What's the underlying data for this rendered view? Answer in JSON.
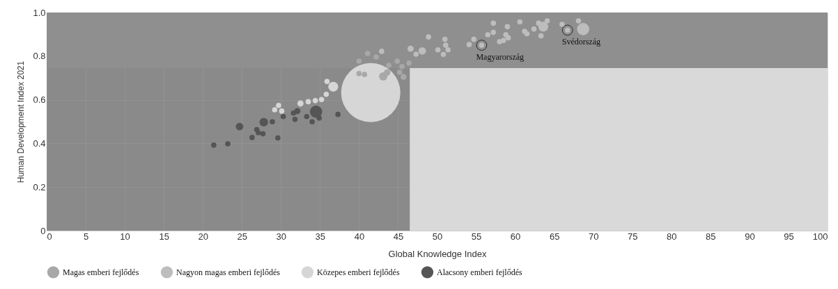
{
  "chart_data": {
    "type": "bubble",
    "xlabel": "Global Knowledge Index",
    "ylabel": "Human Development Index 2021",
    "xlim": [
      0,
      100
    ],
    "ylim": [
      0,
      1
    ],
    "xticks": [
      0,
      5,
      10,
      15,
      20,
      25,
      30,
      35,
      40,
      45,
      50,
      55,
      60,
      65,
      70,
      75,
      80,
      85,
      90,
      95,
      100
    ],
    "yticks": [
      0,
      0.2,
      0.4,
      0.6,
      0.8,
      {
        "value": 1,
        "label": "1.0"
      }
    ],
    "grid": true,
    "legend": "bottom",
    "marker": "circle",
    "bands": [
      {
        "axis": "x",
        "from": 46.5,
        "to": 100,
        "color": "#d9d9d9"
      },
      {
        "axis": "y",
        "from": 0.745,
        "to": 1,
        "color": "#8f8f8f"
      }
    ],
    "annotations": [
      {
        "text": "Magyarország",
        "x": 55.7,
        "y": 0.85
      },
      {
        "text": "Svédország",
        "x": 66.7,
        "y": 0.919
      }
    ],
    "series": [
      {
        "name": "Magas emberi fejlődés",
        "color": "#a8a8a8",
        "x": [
          40.0,
          40.7,
          43.1,
          43.6,
          45.7,
          45.2,
          40.0,
          41.1,
          42.2,
          43.8,
          44.9,
          45.5,
          46.4
        ],
        "values": [
          0.72,
          0.716,
          0.707,
          0.725,
          0.705,
          0.726,
          0.777,
          0.812,
          0.796,
          0.758,
          0.777,
          0.752,
          0.768
        ],
        "sizes": [
          0.008,
          0.008,
          0.02,
          0.012,
          0.01,
          0.008,
          0.008,
          0.008,
          0.008,
          0.008,
          0.008,
          0.008,
          0.008
        ]
      },
      {
        "name": "Nagyon magas emberi fejlődés",
        "color": "#bdbdbd",
        "x": [
          42.9,
          46.6,
          47.3,
          48.1,
          48.9,
          50.1,
          50.8,
          51.0,
          51.1,
          51.4,
          54.1,
          54.7,
          55.7,
          56.5,
          57.2,
          57.2,
          58.0,
          58.5,
          58.8,
          59.0,
          59.1,
          60.6,
          61.2,
          61.5,
          62.4,
          63.0,
          63.3,
          63.6,
          64.1,
          66.0,
          66.7,
          68.1,
          68.7
        ],
        "values": [
          0.822,
          0.834,
          0.809,
          0.824,
          0.888,
          0.829,
          0.808,
          0.877,
          0.85,
          0.829,
          0.853,
          0.877,
          0.85,
          0.898,
          0.909,
          0.951,
          0.866,
          0.872,
          0.898,
          0.935,
          0.884,
          0.957,
          0.914,
          0.903,
          0.924,
          0.951,
          0.893,
          0.935,
          0.962,
          0.946,
          0.919,
          0.962,
          0.924
        ],
        "sizes": [
          0.008,
          0.011,
          0.008,
          0.016,
          0.008,
          0.008,
          0.008,
          0.008,
          0.008,
          0.008,
          0.008,
          0.008,
          0.008,
          0.008,
          0.008,
          0.008,
          0.008,
          0.008,
          0.008,
          0.008,
          0.008,
          0.008,
          0.008,
          0.008,
          0.008,
          0.008,
          0.008,
          0.028,
          0.008,
          0.008,
          0.008,
          0.008,
          0.043
        ]
      },
      {
        "name": "Közepes emberi fejlődés",
        "color": "#d6d6d6",
        "x": [
          29.2,
          29.7,
          30.1,
          32.5,
          33.5,
          34.4,
          35.2,
          35.8,
          35.9,
          36.7,
          41.5
        ],
        "values": [
          0.554,
          0.574,
          0.548,
          0.583,
          0.591,
          0.596,
          0.601,
          0.625,
          0.684,
          0.66,
          0.633
        ],
        "sizes": [
          0.008,
          0.008,
          0.008,
          0.011,
          0.008,
          0.008,
          0.008,
          0.008,
          0.008,
          0.028,
          1
        ]
      },
      {
        "name": "Alacsony emberi fejlődés",
        "color": "#555555",
        "x": [
          21.4,
          23.2,
          24.7,
          26.3,
          26.9,
          27.1,
          27.7,
          27.8,
          28.9,
          29.6,
          30.3,
          31.6,
          32.1,
          31.8,
          33.3,
          34.5,
          34.0,
          34.9,
          37.3
        ],
        "values": [
          0.392,
          0.398,
          0.477,
          0.427,
          0.463,
          0.449,
          0.444,
          0.497,
          0.499,
          0.425,
          0.523,
          0.539,
          0.548,
          0.51,
          0.523,
          0.545,
          0.499,
          0.516,
          0.533
        ],
        "sizes": [
          0.008,
          0.008,
          0.016,
          0.008,
          0.008,
          0.008,
          0.008,
          0.021,
          0.008,
          0.008,
          0.008,
          0.008,
          0.011,
          0.008,
          0.008,
          0.043,
          0.008,
          0.008,
          0.008
        ]
      }
    ]
  }
}
